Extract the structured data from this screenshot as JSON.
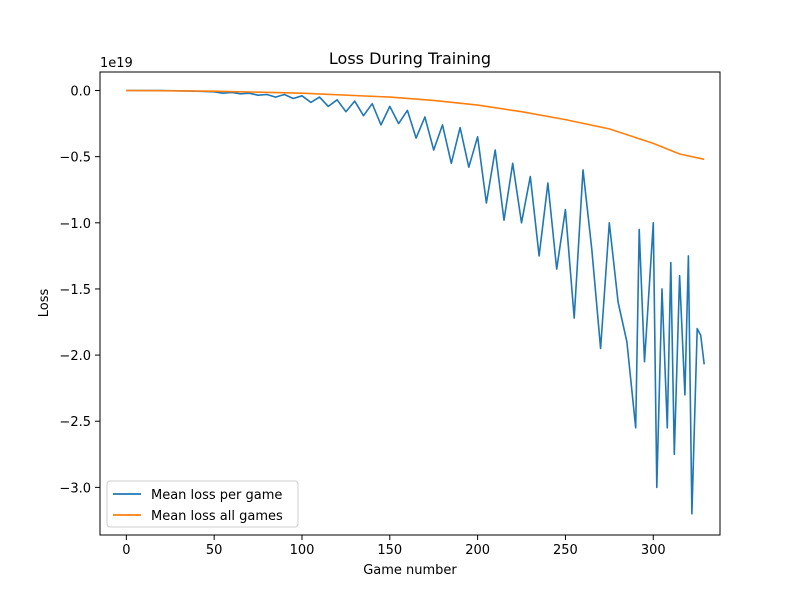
{
  "chart_data": {
    "type": "line",
    "title": "Loss During Training",
    "xlabel": "Game number",
    "ylabel": "Loss",
    "y_scale_label": "1e19",
    "xlim": [
      -15,
      338
    ],
    "ylim": [
      -3.36,
      0.14
    ],
    "x_ticks": [
      0,
      50,
      100,
      150,
      200,
      250,
      300
    ],
    "x_tick_labels": [
      "0",
      "50",
      "100",
      "150",
      "200",
      "250",
      "300"
    ],
    "y_ticks": [
      0.0,
      -0.5,
      -1.0,
      -1.5,
      -2.0,
      -2.5,
      -3.0
    ],
    "y_tick_labels": [
      "0.0",
      "−0.5",
      "−1.0",
      "−1.5",
      "−2.0",
      "−2.5",
      "−3.0"
    ],
    "grid": false,
    "legend_position": "lower-left",
    "series": [
      {
        "name": "Mean loss per game",
        "color": "#1f77b4",
        "points": [
          [
            0,
            0.0
          ],
          [
            20,
            0.0
          ],
          [
            40,
            -0.005
          ],
          [
            50,
            -0.01
          ],
          [
            55,
            -0.02
          ],
          [
            60,
            -0.015
          ],
          [
            65,
            -0.025
          ],
          [
            70,
            -0.02
          ],
          [
            75,
            -0.035
          ],
          [
            80,
            -0.03
          ],
          [
            85,
            -0.05
          ],
          [
            90,
            -0.03
          ],
          [
            95,
            -0.06
          ],
          [
            100,
            -0.04
          ],
          [
            105,
            -0.09
          ],
          [
            110,
            -0.05
          ],
          [
            115,
            -0.12
          ],
          [
            120,
            -0.07
          ],
          [
            125,
            -0.16
          ],
          [
            130,
            -0.08
          ],
          [
            135,
            -0.19
          ],
          [
            140,
            -0.1
          ],
          [
            145,
            -0.26
          ],
          [
            150,
            -0.12
          ],
          [
            155,
            -0.25
          ],
          [
            160,
            -0.15
          ],
          [
            165,
            -0.36
          ],
          [
            170,
            -0.2
          ],
          [
            175,
            -0.45
          ],
          [
            180,
            -0.26
          ],
          [
            185,
            -0.55
          ],
          [
            190,
            -0.28
          ],
          [
            195,
            -0.58
          ],
          [
            200,
            -0.35
          ],
          [
            205,
            -0.85
          ],
          [
            210,
            -0.45
          ],
          [
            215,
            -0.98
          ],
          [
            220,
            -0.55
          ],
          [
            225,
            -1.0
          ],
          [
            230,
            -0.65
          ],
          [
            235,
            -1.25
          ],
          [
            240,
            -0.7
          ],
          [
            245,
            -1.35
          ],
          [
            250,
            -0.9
          ],
          [
            255,
            -1.72
          ],
          [
            260,
            -0.6
          ],
          [
            265,
            -1.2
          ],
          [
            270,
            -1.95
          ],
          [
            275,
            -1.0
          ],
          [
            280,
            -1.6
          ],
          [
            285,
            -1.9
          ],
          [
            290,
            -2.55
          ],
          [
            292,
            -1.05
          ],
          [
            295,
            -2.05
          ],
          [
            300,
            -1.0
          ],
          [
            302,
            -3.0
          ],
          [
            305,
            -1.5
          ],
          [
            308,
            -2.55
          ],
          [
            310,
            -1.3
          ],
          [
            312,
            -2.75
          ],
          [
            315,
            -1.4
          ],
          [
            318,
            -2.3
          ],
          [
            320,
            -1.25
          ],
          [
            322,
            -3.2
          ],
          [
            325,
            -1.8
          ],
          [
            327,
            -1.85
          ],
          [
            329,
            -2.07
          ]
        ]
      },
      {
        "name": "Mean loss all games",
        "color": "#ff7f0e",
        "points": [
          [
            0,
            0.0
          ],
          [
            50,
            -0.005
          ],
          [
            100,
            -0.02
          ],
          [
            150,
            -0.05
          ],
          [
            175,
            -0.075
          ],
          [
            200,
            -0.11
          ],
          [
            225,
            -0.16
          ],
          [
            250,
            -0.22
          ],
          [
            275,
            -0.29
          ],
          [
            300,
            -0.4
          ],
          [
            315,
            -0.48
          ],
          [
            329,
            -0.52
          ]
        ]
      }
    ]
  }
}
